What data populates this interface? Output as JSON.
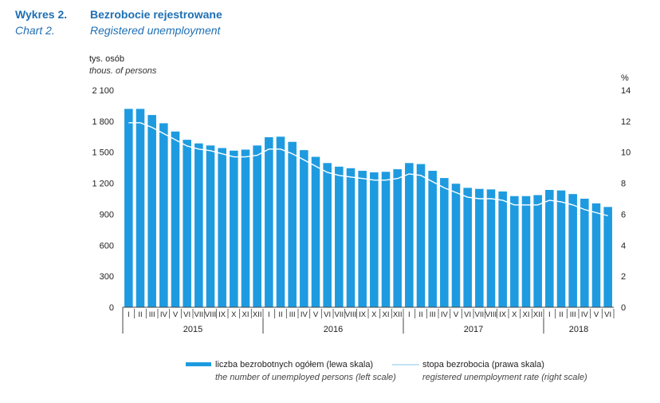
{
  "header": {
    "label_pl": "Wykres 2.",
    "title_pl": "Bezrobocie rejestrowane",
    "label_en": "Chart 2.",
    "title_en": "Registered unemployment"
  },
  "colors": {
    "bars": "#1e9be0",
    "line": "#ffffff",
    "axis": "#444444"
  },
  "chart_data": {
    "type": "bar",
    "left_axis": {
      "unit_pl": "tys. osób",
      "unit_en": "thous. of persons",
      "min": 0,
      "max": 2100,
      "ticks": [
        "0",
        "300",
        "600",
        "900",
        "1 200",
        "1 500",
        "1 800",
        "2 100"
      ]
    },
    "right_axis": {
      "unit": "%",
      "min": 0,
      "max": 14,
      "ticks": [
        "0",
        "2",
        "4",
        "6",
        "8",
        "10",
        "12",
        "14"
      ]
    },
    "month_labels": [
      "I",
      "II",
      "III",
      "IV",
      "V",
      "VI",
      "VII",
      "VIII",
      "IX",
      "X",
      "XI",
      "XII",
      "I",
      "II",
      "III",
      "IV",
      "V",
      "VI",
      "VII",
      "VIII",
      "IX",
      "X",
      "XI",
      "XII",
      "I",
      "II",
      "III",
      "IV",
      "V",
      "VI",
      "VII",
      "VIII",
      "IX",
      "X",
      "XI",
      "XII",
      "I",
      "II",
      "III",
      "IV",
      "V",
      "VI"
    ],
    "years": [
      {
        "label": "2015",
        "months": 12
      },
      {
        "label": "2016",
        "months": 12
      },
      {
        "label": "2017",
        "months": 12
      },
      {
        "label": "2018",
        "months": 6
      }
    ],
    "series": [
      {
        "name": "liczba bezrobotnych ogółem (lewa skala)",
        "name_en": "the number of unemployed persons (left scale)",
        "type": "bar",
        "axis": "left",
        "values": [
          1919,
          1919,
          1860,
          1780,
          1700,
          1620,
          1585,
          1565,
          1540,
          1515,
          1525,
          1565,
          1645,
          1650,
          1600,
          1520,
          1455,
          1395,
          1360,
          1345,
          1320,
          1305,
          1310,
          1335,
          1395,
          1385,
          1320,
          1250,
          1195,
          1155,
          1145,
          1140,
          1120,
          1075,
          1075,
          1085,
          1135,
          1130,
          1095,
          1050,
          1005,
          970
        ]
      },
      {
        "name": "stopa bezrobocia (prawa skala)",
        "name_en": "registered unemployment rate (right scale)",
        "type": "line",
        "axis": "right",
        "values": [
          11.9,
          11.9,
          11.6,
          11.2,
          10.8,
          10.4,
          10.2,
          10.1,
          9.9,
          9.7,
          9.7,
          9.8,
          10.2,
          10.2,
          9.9,
          9.5,
          9.1,
          8.7,
          8.5,
          8.4,
          8.3,
          8.2,
          8.2,
          8.3,
          8.6,
          8.5,
          8.1,
          7.7,
          7.4,
          7.1,
          7.0,
          7.0,
          6.9,
          6.6,
          6.6,
          6.6,
          6.9,
          6.8,
          6.6,
          6.3,
          6.1,
          5.9
        ]
      }
    ]
  }
}
